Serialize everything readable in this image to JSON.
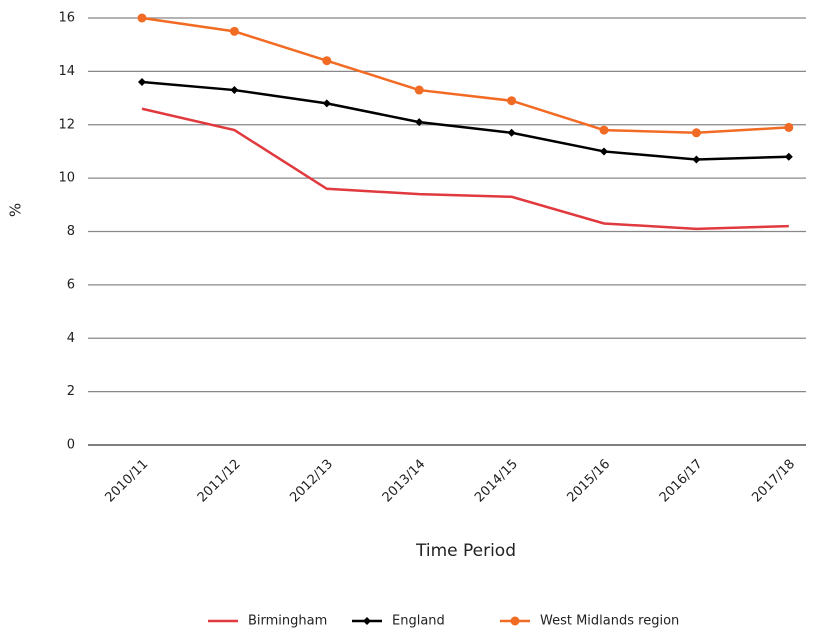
{
  "chart_data": {
    "type": "line",
    "y_label": "%",
    "x_label": "Time Period",
    "categories": [
      "2010/11",
      "2011/12",
      "2012/13",
      "2013/14",
      "2014/15",
      "2015/16",
      "2016/17",
      "2017/18"
    ],
    "series": [
      {
        "name": "Birmingham",
        "color": "#e0393e",
        "marker": "none",
        "values": [
          12.6,
          11.8,
          9.6,
          9.4,
          9.3,
          8.3,
          8.1,
          8.2
        ]
      },
      {
        "name": "England",
        "color": "#000000",
        "marker": "diamond",
        "values": [
          13.6,
          13.3,
          12.8,
          12.1,
          11.7,
          11.0,
          10.7,
          10.8
        ]
      },
      {
        "name": "West Midlands region",
        "color": "#f26b24",
        "marker": "circle",
        "values": [
          16.0,
          15.5,
          14.4,
          13.3,
          12.9,
          11.8,
          11.7,
          11.9
        ]
      }
    ],
    "ylim": [
      0,
      16
    ],
    "yticks": [
      0,
      2,
      4,
      6,
      8,
      10,
      12,
      14,
      16
    ],
    "grid": true,
    "legend": "bottom"
  }
}
